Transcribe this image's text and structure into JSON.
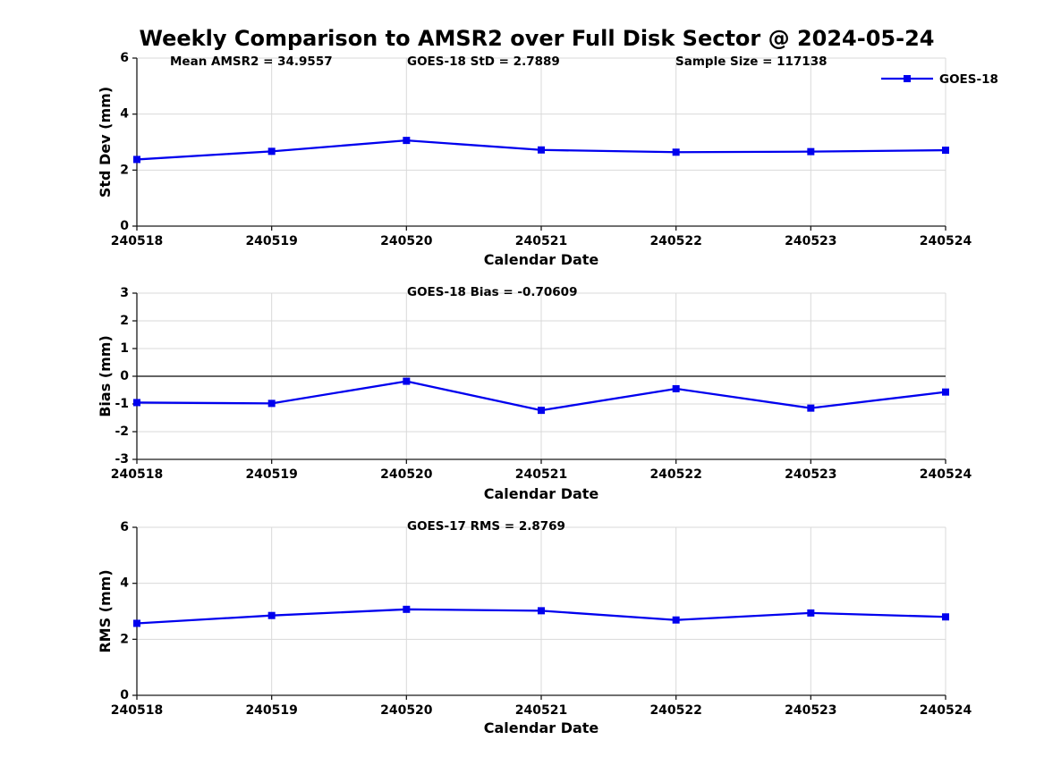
{
  "title": "Weekly Comparison to AMSR2 over Full Disk Sector @ 2024-05-24",
  "legend": {
    "label": "GOES-18",
    "position": "top-right"
  },
  "colors": {
    "series_line": "#0000EE",
    "marker": "#0000DD",
    "grid": "#D9D9D9",
    "axis": "#1A1A1A",
    "zero_line": "#4D4D4D",
    "text": "#000000",
    "background": "#FFFFFF"
  },
  "chart_data": [
    {
      "type": "line",
      "name": "std-dev",
      "annotations": [
        "Mean AMSR2 = 34.9557",
        "GOES-18 StD = 2.7889",
        "Sample Size = 117138"
      ],
      "categories": [
        "240518",
        "240519",
        "240520",
        "240521",
        "240522",
        "240523",
        "240524"
      ],
      "series": [
        {
          "name": "GOES-18",
          "values": [
            2.38,
            2.67,
            3.06,
            2.72,
            2.64,
            2.66,
            2.71
          ]
        }
      ],
      "xlabel": "Calendar Date",
      "ylabel": "Std Dev (mm)",
      "ylim": [
        0,
        6
      ],
      "yticks": [
        0,
        2,
        4,
        6
      ],
      "grid": true,
      "zero_line": false,
      "marker": "square"
    },
    {
      "type": "line",
      "name": "bias",
      "annotations": [
        "GOES-18 Bias  = -0.70609"
      ],
      "categories": [
        "240518",
        "240519",
        "240520",
        "240521",
        "240522",
        "240523",
        "240524"
      ],
      "series": [
        {
          "name": "GOES-18",
          "values": [
            -0.95,
            -0.98,
            -0.18,
            -1.23,
            -0.45,
            -1.15,
            -0.57
          ]
        }
      ],
      "xlabel": "Calendar Date",
      "ylabel": "Bias (mm)",
      "ylim": [
        -3,
        3
      ],
      "yticks": [
        -3,
        -2,
        -1,
        0,
        1,
        2,
        3
      ],
      "grid": true,
      "zero_line": true,
      "marker": "square"
    },
    {
      "type": "line",
      "name": "rms",
      "annotations": [
        "GOES-17 RMS = 2.8769"
      ],
      "categories": [
        "240518",
        "240519",
        "240520",
        "240521",
        "240522",
        "240523",
        "240524"
      ],
      "series": [
        {
          "name": "GOES-18",
          "values": [
            2.57,
            2.85,
            3.07,
            3.02,
            2.69,
            2.94,
            2.8
          ]
        }
      ],
      "xlabel": "Calendar Date",
      "ylabel": "RMS (mm)",
      "ylim": [
        0,
        6
      ],
      "yticks": [
        0,
        2,
        4,
        6
      ],
      "grid": true,
      "zero_line": false,
      "marker": "square"
    }
  ]
}
